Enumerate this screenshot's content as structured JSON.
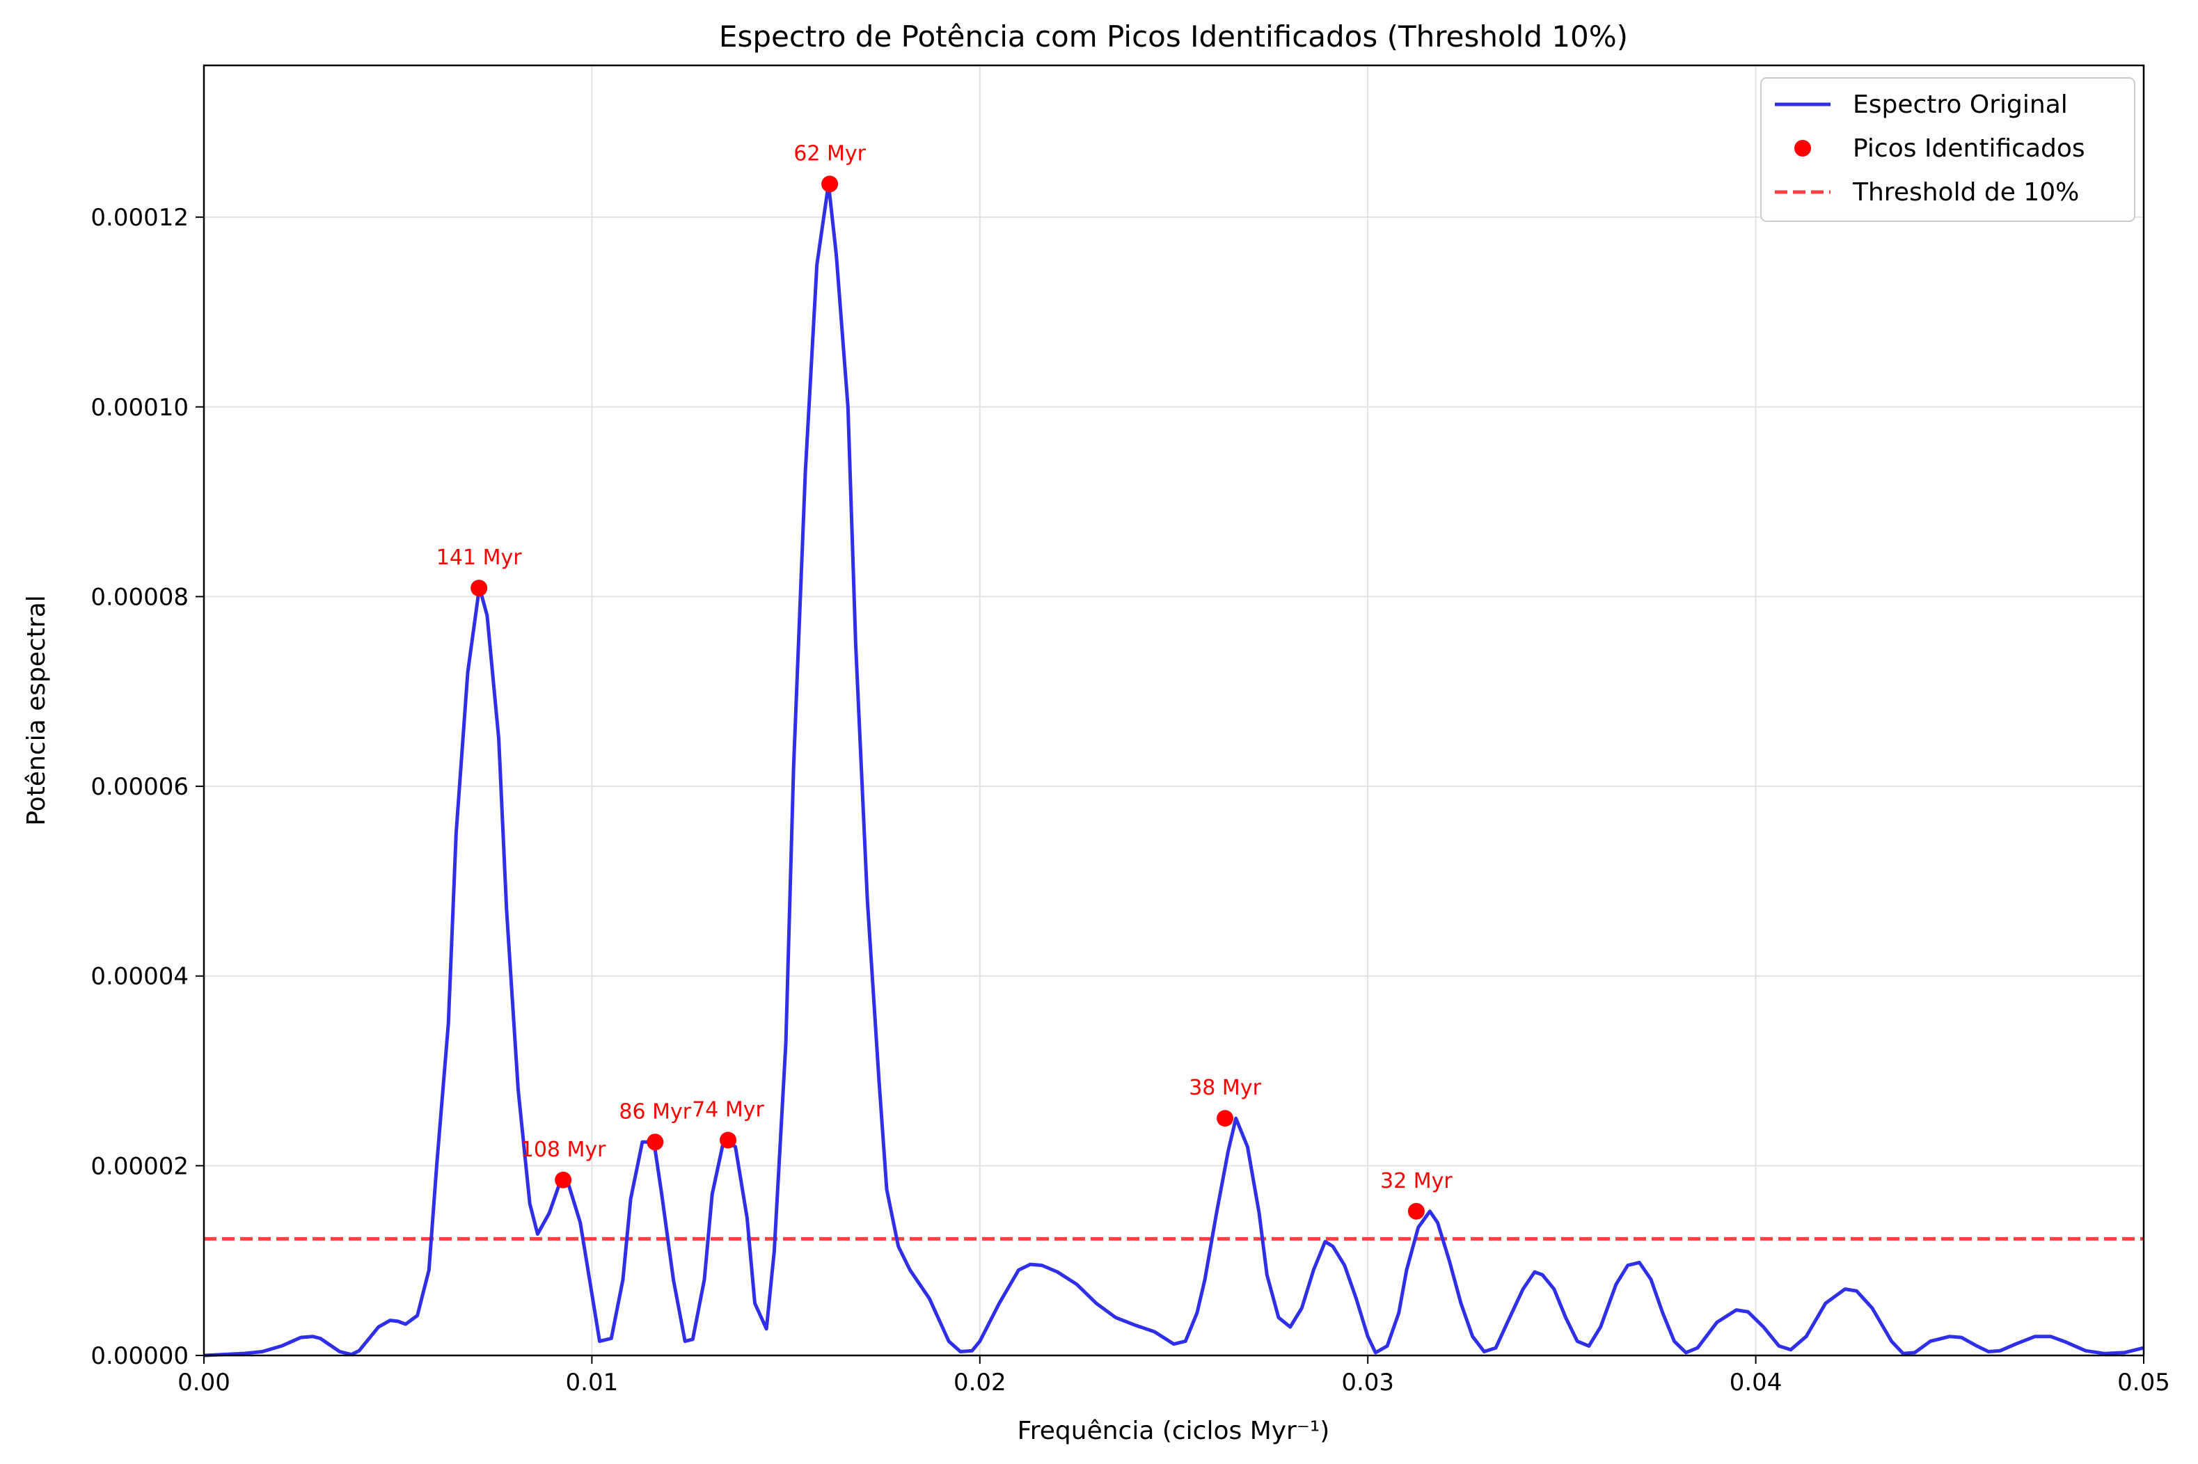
{
  "chart_data": {
    "type": "line",
    "title": "Espectro de Potência com Picos Identificados (Threshold 10%)",
    "xlabel": "Frequência (ciclos Myr⁻¹)",
    "ylabel": "Potência espectral",
    "xlim": [
      0.0,
      0.05
    ],
    "ylim": [
      0.0,
      0.000136
    ],
    "grid": true,
    "legend_position": "top-right",
    "x_ticks": [
      {
        "value": 0.0,
        "label": "0.00"
      },
      {
        "value": 0.01,
        "label": "0.01"
      },
      {
        "value": 0.02,
        "label": "0.02"
      },
      {
        "value": 0.03,
        "label": "0.03"
      },
      {
        "value": 0.04,
        "label": "0.04"
      },
      {
        "value": 0.05,
        "label": "0.05"
      }
    ],
    "y_ticks": [
      {
        "value": 0.0,
        "label": "0.00000"
      },
      {
        "value": 2e-05,
        "label": "0.00002"
      },
      {
        "value": 4e-05,
        "label": "0.00004"
      },
      {
        "value": 6e-05,
        "label": "0.00006"
      },
      {
        "value": 8e-05,
        "label": "0.00008"
      },
      {
        "value": 0.0001,
        "label": "0.00010"
      },
      {
        "value": 0.00012,
        "label": "0.00012"
      }
    ],
    "series": [
      {
        "name": "Espectro Original",
        "style": "line",
        "color": "#2f2fe8",
        "points": [
          [
            0.0,
            0.0
          ],
          [
            0.001,
            2e-07
          ],
          [
            0.0015,
            4e-07
          ],
          [
            0.002,
            1e-06
          ],
          [
            0.0025,
            1.9e-06
          ],
          [
            0.0028,
            2e-06
          ],
          [
            0.003,
            1.8e-06
          ],
          [
            0.0035,
            4e-07
          ],
          [
            0.0038,
            1e-07
          ],
          [
            0.004,
            5e-07
          ],
          [
            0.0045,
            3e-06
          ],
          [
            0.0048,
            3.7e-06
          ],
          [
            0.005,
            3.6e-06
          ],
          [
            0.0052,
            3.3e-06
          ],
          [
            0.0055,
            4.2e-06
          ],
          [
            0.0058,
            9e-06
          ],
          [
            0.006,
            2e-05
          ],
          [
            0.0063,
            3.5e-05
          ],
          [
            0.0065,
            5.5e-05
          ],
          [
            0.0068,
            7.2e-05
          ],
          [
            0.0071,
            8.1e-05
          ],
          [
            0.0073,
            7.8e-05
          ],
          [
            0.0076,
            6.5e-05
          ],
          [
            0.0078,
            4.7e-05
          ],
          [
            0.0081,
            2.8e-05
          ],
          [
            0.0084,
            1.6e-05
          ],
          [
            0.0086,
            1.28e-05
          ],
          [
            0.0089,
            1.5e-05
          ],
          [
            0.0092,
            1.85e-05
          ],
          [
            0.0094,
            1.8e-05
          ],
          [
            0.0097,
            1.4e-05
          ],
          [
            0.01,
            6.5e-06
          ],
          [
            0.0102,
            1.5e-06
          ],
          [
            0.0105,
            1.8e-06
          ],
          [
            0.0108,
            8e-06
          ],
          [
            0.011,
            1.65e-05
          ],
          [
            0.0113,
            2.25e-05
          ],
          [
            0.0116,
            2.25e-05
          ],
          [
            0.0118,
            1.7e-05
          ],
          [
            0.0121,
            8e-06
          ],
          [
            0.0124,
            1.5e-06
          ],
          [
            0.0126,
            1.7e-06
          ],
          [
            0.0129,
            8e-06
          ],
          [
            0.0131,
            1.7e-05
          ],
          [
            0.0134,
            2.27e-05
          ],
          [
            0.0137,
            2.2e-05
          ],
          [
            0.014,
            1.45e-05
          ],
          [
            0.0142,
            5.5e-06
          ],
          [
            0.0145,
            2.8e-06
          ],
          [
            0.0147,
            1.1e-05
          ],
          [
            0.015,
            3.3e-05
          ],
          [
            0.0152,
            6.2e-05
          ],
          [
            0.0155,
            9.3e-05
          ],
          [
            0.0158,
            0.000115
          ],
          [
            0.0161,
            0.0001235
          ],
          [
            0.0163,
            0.000116
          ],
          [
            0.0166,
            0.0001
          ],
          [
            0.0168,
            7.5e-05
          ],
          [
            0.0171,
            4.8e-05
          ],
          [
            0.0174,
            2.9e-05
          ],
          [
            0.0176,
            1.75e-05
          ],
          [
            0.0179,
            1.15e-05
          ],
          [
            0.0182,
            9e-06
          ],
          [
            0.0187,
            6e-06
          ],
          [
            0.0192,
            1.5e-06
          ],
          [
            0.0195,
            4e-07
          ],
          [
            0.0198,
            5e-07
          ],
          [
            0.02,
            1.5e-06
          ],
          [
            0.0205,
            5.5e-06
          ],
          [
            0.021,
            9e-06
          ],
          [
            0.0213,
            9.6e-06
          ],
          [
            0.0216,
            9.5e-06
          ],
          [
            0.022,
            8.8e-06
          ],
          [
            0.0225,
            7.5e-06
          ],
          [
            0.023,
            5.5e-06
          ],
          [
            0.0235,
            4e-06
          ],
          [
            0.024,
            3.2e-06
          ],
          [
            0.0245,
            2.5e-06
          ],
          [
            0.025,
            1.2e-06
          ],
          [
            0.0253,
            1.5e-06
          ],
          [
            0.0256,
            4.5e-06
          ],
          [
            0.0258,
            8e-06
          ],
          [
            0.0261,
            1.5e-05
          ],
          [
            0.0264,
            2.15e-05
          ],
          [
            0.0266,
            2.5e-05
          ],
          [
            0.0269,
            2.2e-05
          ],
          [
            0.0272,
            1.5e-05
          ],
          [
            0.0274,
            8.5e-06
          ],
          [
            0.0277,
            4e-06
          ],
          [
            0.028,
            3e-06
          ],
          [
            0.0283,
            5e-06
          ],
          [
            0.0286,
            9e-06
          ],
          [
            0.0289,
            1.2e-05
          ],
          [
            0.0291,
            1.15e-05
          ],
          [
            0.0294,
            9.5e-06
          ],
          [
            0.0297,
            6e-06
          ],
          [
            0.03,
            2e-06
          ],
          [
            0.0302,
            3e-07
          ],
          [
            0.0305,
            1e-06
          ],
          [
            0.0308,
            4.5e-06
          ],
          [
            0.031,
            9e-06
          ],
          [
            0.0313,
            1.35e-05
          ],
          [
            0.0316,
            1.52e-05
          ],
          [
            0.0318,
            1.4e-05
          ],
          [
            0.0321,
            1e-05
          ],
          [
            0.0324,
            5.5e-06
          ],
          [
            0.0327,
            2e-06
          ],
          [
            0.033,
            4e-07
          ],
          [
            0.0333,
            8e-07
          ],
          [
            0.0336,
            3.5e-06
          ],
          [
            0.034,
            7e-06
          ],
          [
            0.0343,
            8.8e-06
          ],
          [
            0.0345,
            8.5e-06
          ],
          [
            0.0348,
            7e-06
          ],
          [
            0.0351,
            4e-06
          ],
          [
            0.0354,
            1.5e-06
          ],
          [
            0.0357,
            1e-06
          ],
          [
            0.036,
            3e-06
          ],
          [
            0.0364,
            7.5e-06
          ],
          [
            0.0367,
            9.5e-06
          ],
          [
            0.037,
            9.8e-06
          ],
          [
            0.0373,
            8e-06
          ],
          [
            0.0376,
            4.5e-06
          ],
          [
            0.0379,
            1.5e-06
          ],
          [
            0.0382,
            3e-07
          ],
          [
            0.0385,
            8e-07
          ],
          [
            0.039,
            3.5e-06
          ],
          [
            0.0395,
            4.8e-06
          ],
          [
            0.0398,
            4.6e-06
          ],
          [
            0.0402,
            3e-06
          ],
          [
            0.0406,
            1e-06
          ],
          [
            0.0409,
            6e-07
          ],
          [
            0.0413,
            2e-06
          ],
          [
            0.0418,
            5.5e-06
          ],
          [
            0.0423,
            7e-06
          ],
          [
            0.0426,
            6.8e-06
          ],
          [
            0.043,
            5e-06
          ],
          [
            0.0435,
            1.5e-06
          ],
          [
            0.0438,
            2e-07
          ],
          [
            0.0441,
            3e-07
          ],
          [
            0.0445,
            1.5e-06
          ],
          [
            0.045,
            2e-06
          ],
          [
            0.0453,
            1.9e-06
          ],
          [
            0.0457,
            1e-06
          ],
          [
            0.046,
            4e-07
          ],
          [
            0.0463,
            5e-07
          ],
          [
            0.0467,
            1.2e-06
          ],
          [
            0.0472,
            2e-06
          ],
          [
            0.0476,
            2e-06
          ],
          [
            0.048,
            1.4e-06
          ],
          [
            0.0485,
            5e-07
          ],
          [
            0.049,
            2e-07
          ],
          [
            0.0495,
            3e-07
          ],
          [
            0.05,
            8e-07
          ]
        ]
      },
      {
        "name": "Picos Identificados",
        "style": "marker",
        "color": "#ff0000",
        "points": [
          {
            "x": 0.00709,
            "y": 8.09e-05,
            "label": "141 Myr"
          },
          {
            "x": 0.00926,
            "y": 1.85e-05,
            "label": "108 Myr"
          },
          {
            "x": 0.01163,
            "y": 2.25e-05,
            "label": "86 Myr"
          },
          {
            "x": 0.01351,
            "y": 2.27e-05,
            "label": "74 Myr"
          },
          {
            "x": 0.01613,
            "y": 0.0001235,
            "label": "62 Myr"
          },
          {
            "x": 0.02632,
            "y": 2.5e-05,
            "label": "38 Myr"
          },
          {
            "x": 0.03125,
            "y": 1.52e-05,
            "label": "32 Myr"
          }
        ]
      },
      {
        "name": "Threshold de 10%",
        "style": "dashed",
        "color": "#ff4040",
        "y": 1.23e-05
      }
    ]
  }
}
